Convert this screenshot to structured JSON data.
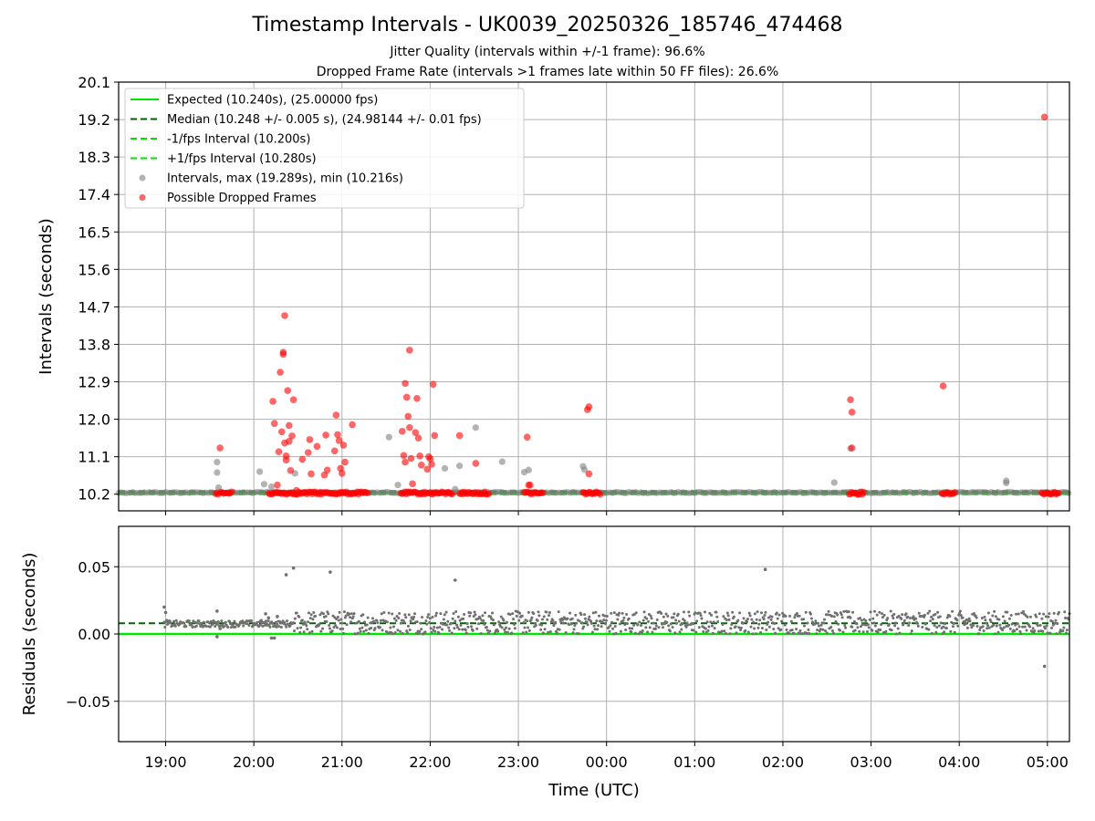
{
  "title": "Timestamp Intervals - UK0039_20250326_185746_474468",
  "subtitle_jitter": "Jitter Quality (intervals within +/-1 frame): 96.6%",
  "subtitle_dropped": "Dropped Frame Rate (intervals >1 frames late within 50 FF files): 26.6%",
  "colors": {
    "expected": "#00e600",
    "median": "#006400",
    "band": "#00e600",
    "intervals": "#808080",
    "dropped": "#ff0000",
    "residuals": "#707070",
    "grid": "#b0b0b0"
  },
  "chart_data": [
    {
      "type": "scatter",
      "panel": "intervals",
      "ylabel": "Intervals (seconds)",
      "xlim": [
        "18:28",
        "05:15"
      ],
      "ylim": [
        9.8,
        20.1
      ],
      "yticks": [
        "10.2",
        "11.1",
        "12.0",
        "12.9",
        "13.8",
        "14.7",
        "15.6",
        "16.5",
        "17.4",
        "18.3",
        "19.2",
        "20.1"
      ],
      "grid": true,
      "legend_position": "upper-left",
      "legend": [
        {
          "label": "Expected (10.240s), (25.00000 fps)",
          "style": "solid-line",
          "color": "#00e600"
        },
        {
          "label": "Median (10.248 +/- 0.005 s), (24.98144 +/- 0.01 fps)",
          "style": "dashed-line",
          "color": "#006400"
        },
        {
          "label": "-1/fps Interval (10.200s)",
          "style": "dashed-line",
          "color": "#00e600"
        },
        {
          "label": "+1/fps Interval (10.280s)",
          "style": "dashed-line",
          "color": "#00e600"
        },
        {
          "label": "Intervals, max (19.289s), min (10.216s)",
          "style": "marker",
          "color": "#808080"
        },
        {
          "label": "Possible Dropped Frames",
          "style": "marker",
          "color": "#ff0000"
        }
      ],
      "reference_lines": {
        "expected": 10.24,
        "median": 10.248,
        "minus_1fps": 10.2,
        "plus_1fps": 10.28
      },
      "dense_baseline": {
        "y": 10.24,
        "segments": [
          [
            "18:28",
            "05:15"
          ]
        ]
      },
      "dropped_clusters": [
        [
          "19:34",
          "19:45"
        ],
        [
          "20:10",
          "21:18"
        ],
        [
          "21:40",
          "22:16"
        ],
        [
          "22:20",
          "22:40"
        ],
        [
          "23:04",
          "23:17"
        ],
        [
          "23:44",
          "23:56"
        ],
        [
          "02:45",
          "02:55"
        ],
        [
          "03:48",
          "03:57"
        ],
        [
          "04:56",
          "05:08"
        ]
      ],
      "intervals": [
        [
          "19:35",
          10.97
        ],
        [
          "19:35",
          10.72
        ],
        [
          "19:36",
          10.36
        ],
        [
          "20:04",
          10.74
        ],
        [
          "20:07",
          10.44
        ],
        [
          "20:12",
          10.38
        ],
        [
          "20:28",
          10.7
        ],
        [
          "21:32",
          11.57
        ],
        [
          "21:38",
          10.42
        ],
        [
          "22:10",
          10.82
        ],
        [
          "22:17",
          10.32
        ],
        [
          "22:20",
          10.88
        ],
        [
          "22:31",
          11.8
        ],
        [
          "22:49",
          10.98
        ],
        [
          "23:04",
          10.73
        ],
        [
          "23:07",
          10.78
        ],
        [
          "23:44",
          10.87
        ],
        [
          "23:45",
          10.79
        ],
        [
          "02:35",
          10.48
        ],
        [
          "02:46",
          11.3
        ],
        [
          "04:32",
          10.52
        ],
        [
          "04:32",
          10.47
        ]
      ],
      "dropped": [
        [
          "19:37",
          11.31
        ],
        [
          "20:13",
          12.43
        ],
        [
          "20:14",
          11.9
        ],
        [
          "20:16",
          10.42
        ],
        [
          "20:17",
          11.22
        ],
        [
          "20:18",
          13.13
        ],
        [
          "20:19",
          11.7
        ],
        [
          "20:20",
          13.56
        ],
        [
          "20:20",
          13.61
        ],
        [
          "20:21",
          14.49
        ],
        [
          "20:21",
          11.43
        ],
        [
          "20:22",
          11.12
        ],
        [
          "20:22",
          11.02
        ],
        [
          "20:23",
          12.69
        ],
        [
          "20:24",
          11.47
        ],
        [
          "20:24",
          11.85
        ],
        [
          "20:25",
          10.77
        ],
        [
          "20:26",
          11.6
        ],
        [
          "20:27",
          12.47
        ],
        [
          "20:29",
          10.29
        ],
        [
          "20:33",
          11.04
        ],
        [
          "20:37",
          11.2
        ],
        [
          "20:38",
          11.51
        ],
        [
          "20:39",
          10.69
        ],
        [
          "20:43",
          11.35
        ],
        [
          "20:48",
          10.66
        ],
        [
          "20:49",
          11.62
        ],
        [
          "20:50",
          10.78
        ],
        [
          "20:55",
          11.24
        ],
        [
          "20:56",
          12.1
        ],
        [
          "20:57",
          11.63
        ],
        [
          "20:58",
          11.49
        ],
        [
          "20:59",
          10.82
        ],
        [
          "21:00",
          10.7
        ],
        [
          "21:01",
          11.38
        ],
        [
          "21:02",
          10.97
        ],
        [
          "21:07",
          11.87
        ],
        [
          "21:41",
          11.71
        ],
        [
          "21:42",
          11.13
        ],
        [
          "21:43",
          12.86
        ],
        [
          "21:43",
          10.97
        ],
        [
          "21:44",
          12.53
        ],
        [
          "21:45",
          12.07
        ],
        [
          "21:46",
          13.66
        ],
        [
          "21:46",
          11.8
        ],
        [
          "21:47",
          11.06
        ],
        [
          "21:48",
          10.45
        ],
        [
          "21:50",
          11.68
        ],
        [
          "21:51",
          12.5
        ],
        [
          "21:52",
          11.55
        ],
        [
          "21:53",
          11.12
        ],
        [
          "21:54",
          10.9
        ],
        [
          "21:58",
          10.8
        ],
        [
          "21:59",
          11.1
        ],
        [
          "22:00",
          11.05
        ],
        [
          "22:01",
          10.92
        ],
        [
          "22:02",
          12.84
        ],
        [
          "22:03",
          11.61
        ],
        [
          "22:20",
          11.61
        ],
        [
          "22:31",
          10.94
        ],
        [
          "23:06",
          11.57
        ],
        [
          "23:07",
          10.42
        ],
        [
          "23:08",
          10.42
        ],
        [
          "23:47",
          12.23
        ],
        [
          "23:48",
          12.3
        ],
        [
          "23:48",
          10.69
        ],
        [
          "02:46",
          12.47
        ],
        [
          "02:47",
          12.17
        ],
        [
          "02:47",
          11.31
        ],
        [
          "03:49",
          12.8
        ],
        [
          "04:58",
          19.26
        ]
      ]
    },
    {
      "type": "scatter",
      "panel": "residuals",
      "xlabel": "Time (UTC)",
      "ylabel": "Residuals (seconds)",
      "xlim": [
        "18:28",
        "05:15"
      ],
      "ylim": [
        -0.08,
        0.08
      ],
      "yticks": [
        "0.05",
        "0.00",
        "−0.05"
      ],
      "ytick_values": [
        0.05,
        0.0,
        -0.05
      ],
      "xticks": [
        "19:00",
        "20:00",
        "21:00",
        "22:00",
        "23:00",
        "00:00",
        "01:00",
        "02:00",
        "03:00",
        "04:00",
        "05:00"
      ],
      "grid": true,
      "reference_lines": {
        "expected": 0.0,
        "median": 0.008
      },
      "dense_bands": [
        {
          "x": [
            "20:27",
            "05:15"
          ],
          "y": [
            0.0,
            0.017
          ]
        },
        {
          "x": [
            "18:59",
            "20:27"
          ],
          "y": [
            0.005,
            0.01
          ]
        }
      ],
      "points": [
        [
          "18:59",
          0.02
        ],
        [
          "19:00",
          0.016
        ],
        [
          "19:01",
          0.01
        ],
        [
          "19:35",
          0.017
        ],
        [
          "19:35",
          -0.002
        ],
        [
          "19:37",
          0.004
        ],
        [
          "20:05",
          0.01
        ],
        [
          "20:08",
          0.015
        ],
        [
          "20:10",
          0.012
        ],
        [
          "20:12",
          -0.003
        ],
        [
          "20:14",
          -0.003
        ],
        [
          "20:16",
          0.013
        ],
        [
          "20:22",
          0.044
        ],
        [
          "20:27",
          0.049
        ],
        [
          "20:52",
          0.046
        ],
        [
          "22:17",
          0.04
        ],
        [
          "01:48",
          0.048
        ],
        [
          "04:58",
          -0.024
        ]
      ]
    }
  ]
}
